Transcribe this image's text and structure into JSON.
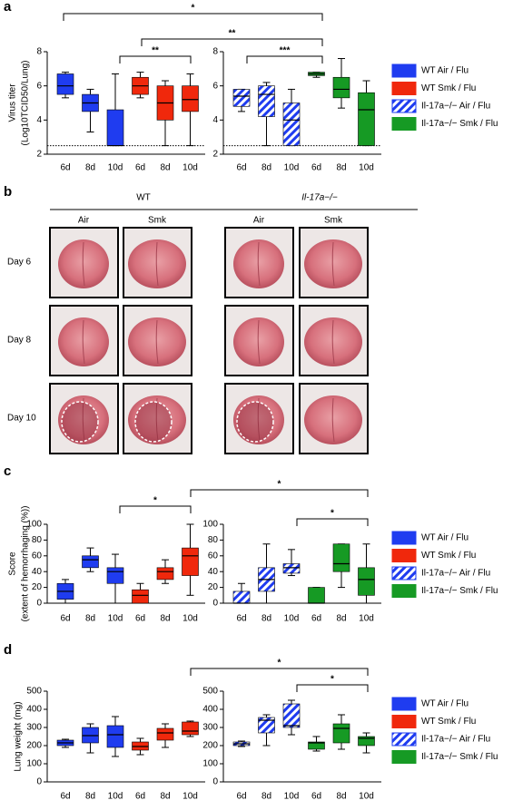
{
  "chart_data": [
    {
      "type": "box",
      "label": "a",
      "ylabel": [
        "Virus titer",
        "(Log10TCID50/Lung)"
      ],
      "ylim": [
        2,
        8
      ],
      "yticks": [
        2,
        4,
        6,
        8
      ],
      "reference_line": 2.5,
      "annotations": [
        "*",
        "**",
        "**",
        "***"
      ],
      "series": [
        {
          "name": "WT Air / Flu",
          "color": "#1f3cf0",
          "pattern": "solid",
          "categories": [
            "6d",
            "8d",
            "10d"
          ],
          "values": [
            [
              5.3,
              5.5,
              6.0,
              6.7,
              6.8
            ],
            [
              3.3,
              4.5,
              5.0,
              5.5,
              5.8
            ],
            [
              2.5,
              2.5,
              2.5,
              4.6,
              6.7
            ]
          ]
        },
        {
          "name": "WT Smk / Flu",
          "color": "#f0280c",
          "pattern": "solid",
          "categories": [
            "6d",
            "8d",
            "10d"
          ],
          "values": [
            [
              5.3,
              5.5,
              6.0,
              6.5,
              6.8
            ],
            [
              2.5,
              4.0,
              5.0,
              6.0,
              6.3
            ],
            [
              2.5,
              4.5,
              5.2,
              6.0,
              6.7
            ]
          ]
        },
        {
          "name": "Il-17a−/− Air / Flu",
          "color": "#1f3cf0",
          "pattern": "hatch",
          "categories": [
            "6d",
            "8d",
            "10d"
          ],
          "values": [
            [
              4.5,
              4.8,
              5.4,
              5.8,
              5.8
            ],
            [
              2.5,
              4.2,
              5.5,
              6.0,
              6.2
            ],
            [
              2.5,
              2.5,
              4.0,
              5.0,
              5.8
            ]
          ]
        },
        {
          "name": "Il-17a−/− Smk / Flu",
          "color": "#169a24",
          "pattern": "solid",
          "categories": [
            "6d",
            "8d",
            "10d"
          ],
          "values": [
            [
              6.5,
              6.6,
              6.7,
              6.8,
              6.8
            ],
            [
              4.7,
              5.3,
              5.8,
              6.5,
              7.6
            ],
            [
              2.5,
              2.5,
              4.6,
              5.6,
              6.3
            ]
          ]
        }
      ]
    },
    {
      "type": "box",
      "label": "c",
      "ylabel": [
        "Score",
        "(extent of hemorrhaging (%))"
      ],
      "ylim": [
        0,
        100
      ],
      "yticks": [
        0,
        20,
        40,
        60,
        80,
        100
      ],
      "annotations": [
        "*",
        "*",
        "*"
      ],
      "series": [
        {
          "name": "WT Air / Flu",
          "color": "#1f3cf0",
          "pattern": "solid",
          "categories": [
            "6d",
            "8d",
            "10d"
          ],
          "values": [
            [
              0,
              5,
              15,
              25,
              30
            ],
            [
              40,
              45,
              55,
              60,
              70
            ],
            [
              0,
              25,
              40,
              45,
              62
            ]
          ]
        },
        {
          "name": "WT Smk / Flu",
          "color": "#f0280c",
          "pattern": "solid",
          "categories": [
            "6d",
            "8d",
            "10d"
          ],
          "values": [
            [
              0,
              0,
              10,
              17,
              25
            ],
            [
              25,
              30,
              40,
              45,
              55
            ],
            [
              10,
              35,
              60,
              70,
              100
            ]
          ]
        },
        {
          "name": "Il-17a−/− Air / Flu",
          "color": "#1f3cf0",
          "pattern": "hatch",
          "categories": [
            "6d",
            "8d",
            "10d"
          ],
          "values": [
            [
              0,
              0,
              0,
              15,
              25
            ],
            [
              0,
              15,
              30,
              45,
              75
            ],
            [
              35,
              38,
              45,
              50,
              68
            ]
          ]
        },
        {
          "name": "Il-17a−/− Smk / Flu",
          "color": "#169a24",
          "pattern": "solid",
          "categories": [
            "6d",
            "8d",
            "10d"
          ],
          "values": [
            [
              0,
              0,
              0,
              20,
              20
            ],
            [
              20,
              40,
              50,
              75,
              75
            ],
            [
              0,
              10,
              30,
              45,
              75
            ]
          ]
        }
      ]
    },
    {
      "type": "box",
      "label": "d",
      "ylabel": [
        "Lung weight (mg)"
      ],
      "ylim": [
        0,
        500
      ],
      "yticks": [
        0,
        100,
        200,
        300,
        400,
        500
      ],
      "annotations": [
        "*",
        "*"
      ],
      "series": [
        {
          "name": "WT Air / Flu",
          "color": "#1f3cf0",
          "pattern": "solid",
          "categories": [
            "6d",
            "8d",
            "10d"
          ],
          "values": [
            [
              190,
              200,
              215,
              230,
              235
            ],
            [
              160,
              215,
              255,
              300,
              320
            ],
            [
              140,
              190,
              260,
              310,
              360
            ]
          ]
        },
        {
          "name": "WT Smk / Flu",
          "color": "#f0280c",
          "pattern": "solid",
          "categories": [
            "6d",
            "8d",
            "10d"
          ],
          "values": [
            [
              150,
              175,
              195,
              220,
              240
            ],
            [
              190,
              230,
              270,
              295,
              320
            ],
            [
              250,
              260,
              280,
              330,
              335
            ]
          ]
        },
        {
          "name": "Il-17a−/− Air / Flu",
          "color": "#1f3cf0",
          "pattern": "hatch",
          "categories": [
            "6d",
            "8d",
            "10d"
          ],
          "values": [
            [
              195,
              200,
              210,
              220,
              225
            ],
            [
              200,
              270,
              340,
              355,
              370
            ],
            [
              260,
              300,
              310,
              430,
              450
            ]
          ]
        },
        {
          "name": "Il-17a−/− Smk / Flu",
          "color": "#169a24",
          "pattern": "solid",
          "categories": [
            "6d",
            "8d",
            "10d"
          ],
          "values": [
            [
              170,
              180,
              215,
              220,
              250
            ],
            [
              180,
              215,
              295,
              320,
              370
            ],
            [
              160,
              200,
              240,
              250,
              270
            ]
          ]
        }
      ]
    }
  ],
  "panel_b": {
    "label": "b",
    "groups": [
      "WT",
      "Il-17a−/−"
    ],
    "treatments": [
      "Air",
      "Smk",
      "Air",
      "Smk"
    ],
    "rows": [
      "Day 6",
      "Day 8",
      "Day 10"
    ]
  }
}
